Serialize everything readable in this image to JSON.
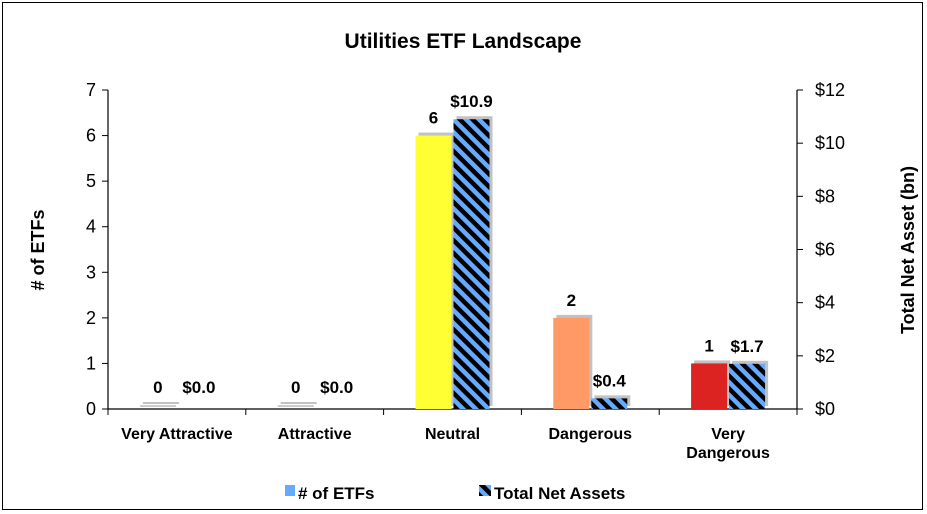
{
  "chart_data": {
    "type": "bar",
    "title": "Utilities ETF Landscape",
    "categories": [
      [
        "Very Attractive"
      ],
      [
        "Attractive"
      ],
      [
        "Neutral"
      ],
      [
        "Dangerous"
      ],
      [
        "Very",
        "Dangerous"
      ]
    ],
    "series": [
      {
        "name": "# of ETFs",
        "axis": "left",
        "values": [
          0,
          0,
          6,
          2,
          1
        ],
        "labels": [
          "0",
          "0",
          "6",
          "2",
          "1"
        ],
        "colors": [
          "#aaaaaa",
          "#aaaaaa",
          "#ffff33",
          "#ff9966",
          "#dd2222"
        ]
      },
      {
        "name": "Total Net Assets",
        "axis": "right",
        "values": [
          0.0,
          0.0,
          10.9,
          0.4,
          1.7
        ],
        "labels": [
          "$0.0",
          "$0.0",
          "$10.9",
          "$0.4",
          "$1.7"
        ],
        "pattern": "black-blue-diagonal-stripes"
      }
    ],
    "ylabel": "# of ETFs",
    "ylim": [
      0,
      7
    ],
    "yticks": [
      "0",
      "1",
      "2",
      "3",
      "4",
      "5",
      "6",
      "7"
    ],
    "y2label": "Total Net Asset (bn)",
    "y2lim": [
      0,
      12
    ],
    "y2ticks": [
      "$0",
      "$2",
      "$4",
      "$6",
      "$8",
      "$10",
      "$12"
    ],
    "legend_position": "bottom",
    "grid": false,
    "colors": {
      "legend_etfs": "#66aaff",
      "stripe_blue": "#66aaff",
      "stripe_black": "#000000"
    }
  }
}
